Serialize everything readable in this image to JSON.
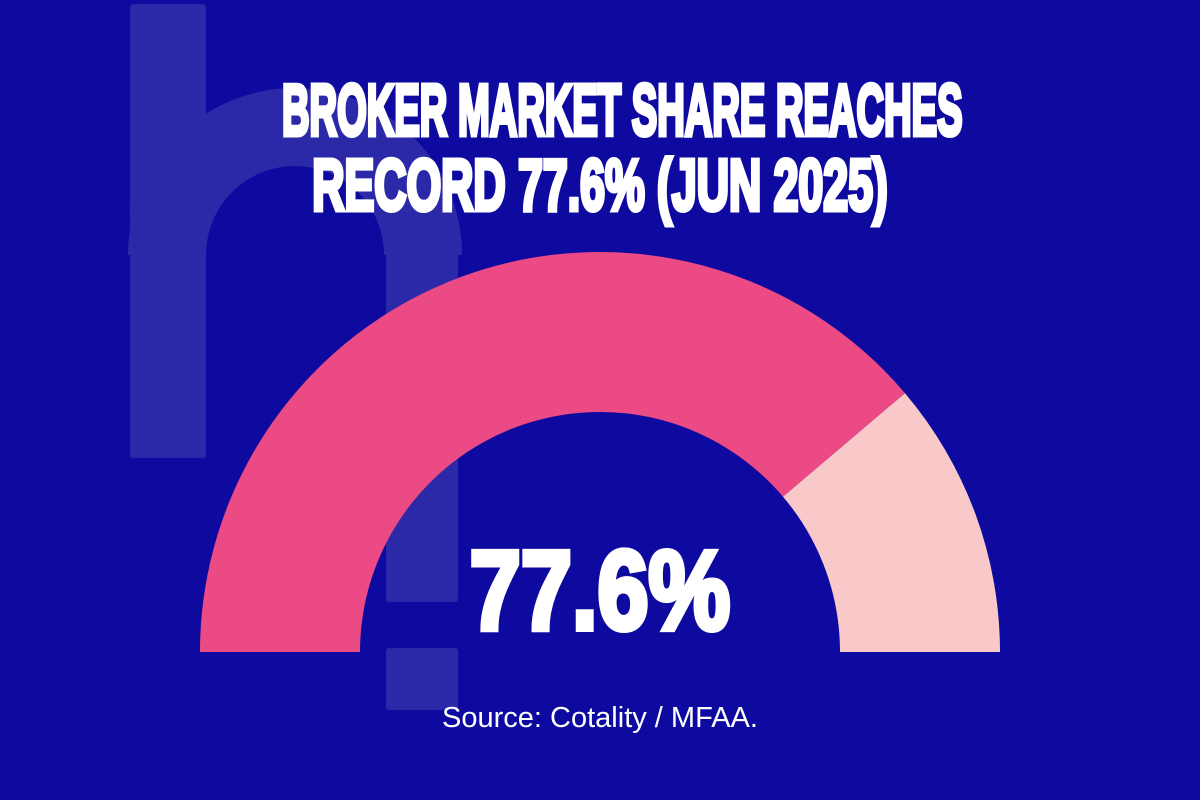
{
  "header": {
    "title_line1": "BROKER MARKET SHARE REACHES",
    "title_line2": "RECORD 77.6% (JUN 2025)"
  },
  "chart_data": {
    "type": "gauge",
    "title": "BROKER MARKET SHARE RECORD 77.6% (JUN 2025)",
    "value": 77.6,
    "min": 0,
    "max": 100,
    "unit": "%",
    "center_label": "77.6%",
    "start_angle_deg": 180,
    "end_angle_deg": 0,
    "direction": "clockwise",
    "legend": "none",
    "colors": {
      "filled": "#EC4A84",
      "remainder": "#F9C8C9"
    }
  },
  "footer": {
    "source": "Source: Cotality / MFAA."
  },
  "colors": {
    "background": "#0E0AA0",
    "watermark": "#2B29A8",
    "text": "#FFFFFF"
  }
}
